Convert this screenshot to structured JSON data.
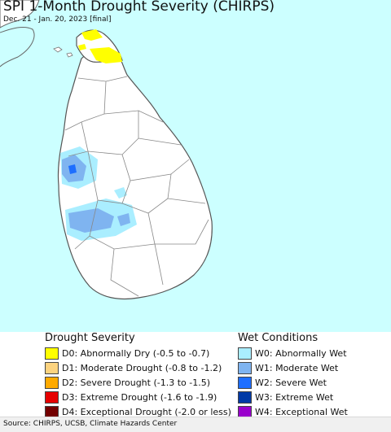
{
  "title": "SPI 1-Month Drought Severity (CHIRPS)",
  "subtitle": "Dec. 21 - Jan. 20, 2023 [final]",
  "map": {
    "region": "Sri Lanka",
    "ocean_color": "#ccffff",
    "land_color": "#ffffff",
    "boundary_color": "#888888",
    "areas_shown": [
      {
        "class": "D0",
        "location": "northern peninsula"
      },
      {
        "class": "W0",
        "location": "west coast"
      },
      {
        "class": "W1",
        "location": "west coast"
      },
      {
        "class": "W2",
        "location": "west coast"
      }
    ]
  },
  "legend": {
    "drought": {
      "heading": "Drought Severity",
      "items": [
        {
          "label": "D0: Abnormally Dry (-0.5 to -0.7)",
          "color": "#ffff00"
        },
        {
          "label": "D1: Moderate Drought (-0.8 to -1.2)",
          "color": "#fcd37f"
        },
        {
          "label": "D2: Severe Drought (-1.3 to -1.5)",
          "color": "#ffaa00"
        },
        {
          "label": "D3: Extreme Drought (-1.6 to -1.9)",
          "color": "#e60000"
        },
        {
          "label": "D4: Exceptional Drought (-2.0 or less)",
          "color": "#730000"
        }
      ]
    },
    "wet": {
      "heading": "Wet Conditions",
      "items": [
        {
          "label": "W0: Abnormally Wet",
          "color": "#aaeeff"
        },
        {
          "label": "W1: Moderate Wet",
          "color": "#7fb4f0"
        },
        {
          "label": "W2: Severe Wet",
          "color": "#1e6eff"
        },
        {
          "label": "W3: Extreme Wet",
          "color": "#0039a6"
        },
        {
          "label": "W4: Exceptional Wet",
          "color": "#9900cc"
        }
      ]
    }
  },
  "footer": "Source: CHIRPS, UCSB, Climate Hazards Center"
}
